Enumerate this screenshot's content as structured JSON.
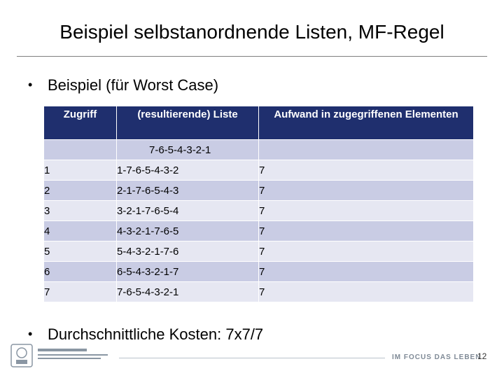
{
  "slide": {
    "title": "Beispiel selbstanordnende Listen, MF-Regel",
    "bullet_1": "Beispiel (für Worst Case)",
    "bullet_2": "Durchschnittliche Kosten: 7x7/7"
  },
  "table": {
    "headers": {
      "access": "Zugriff",
      "list": "(resultierende) Liste",
      "cost": "Aufwand in zugegriffenen Elementen"
    },
    "initial_list": "7-6-5-4-3-2-1",
    "rows": [
      {
        "access": "1",
        "list": "1-7-6-5-4-3-2",
        "cost": "7"
      },
      {
        "access": "2",
        "list": "2-1-7-6-5-4-3",
        "cost": "7"
      },
      {
        "access": "3",
        "list": "3-2-1-7-6-5-4",
        "cost": "7"
      },
      {
        "access": "4",
        "list": "4-3-2-1-7-6-5",
        "cost": "7"
      },
      {
        "access": "5",
        "list": "5-4-3-2-1-7-6",
        "cost": "7"
      },
      {
        "access": "6",
        "list": "6-5-4-3-2-1-7",
        "cost": "7"
      },
      {
        "access": "7",
        "list": "7-6-5-4-3-2-1",
        "cost": "7"
      }
    ]
  },
  "footer": {
    "slogan": "IM FOCUS DAS LEBEN",
    "page_number": "12",
    "logo_icon": "university-seal-icon"
  }
}
